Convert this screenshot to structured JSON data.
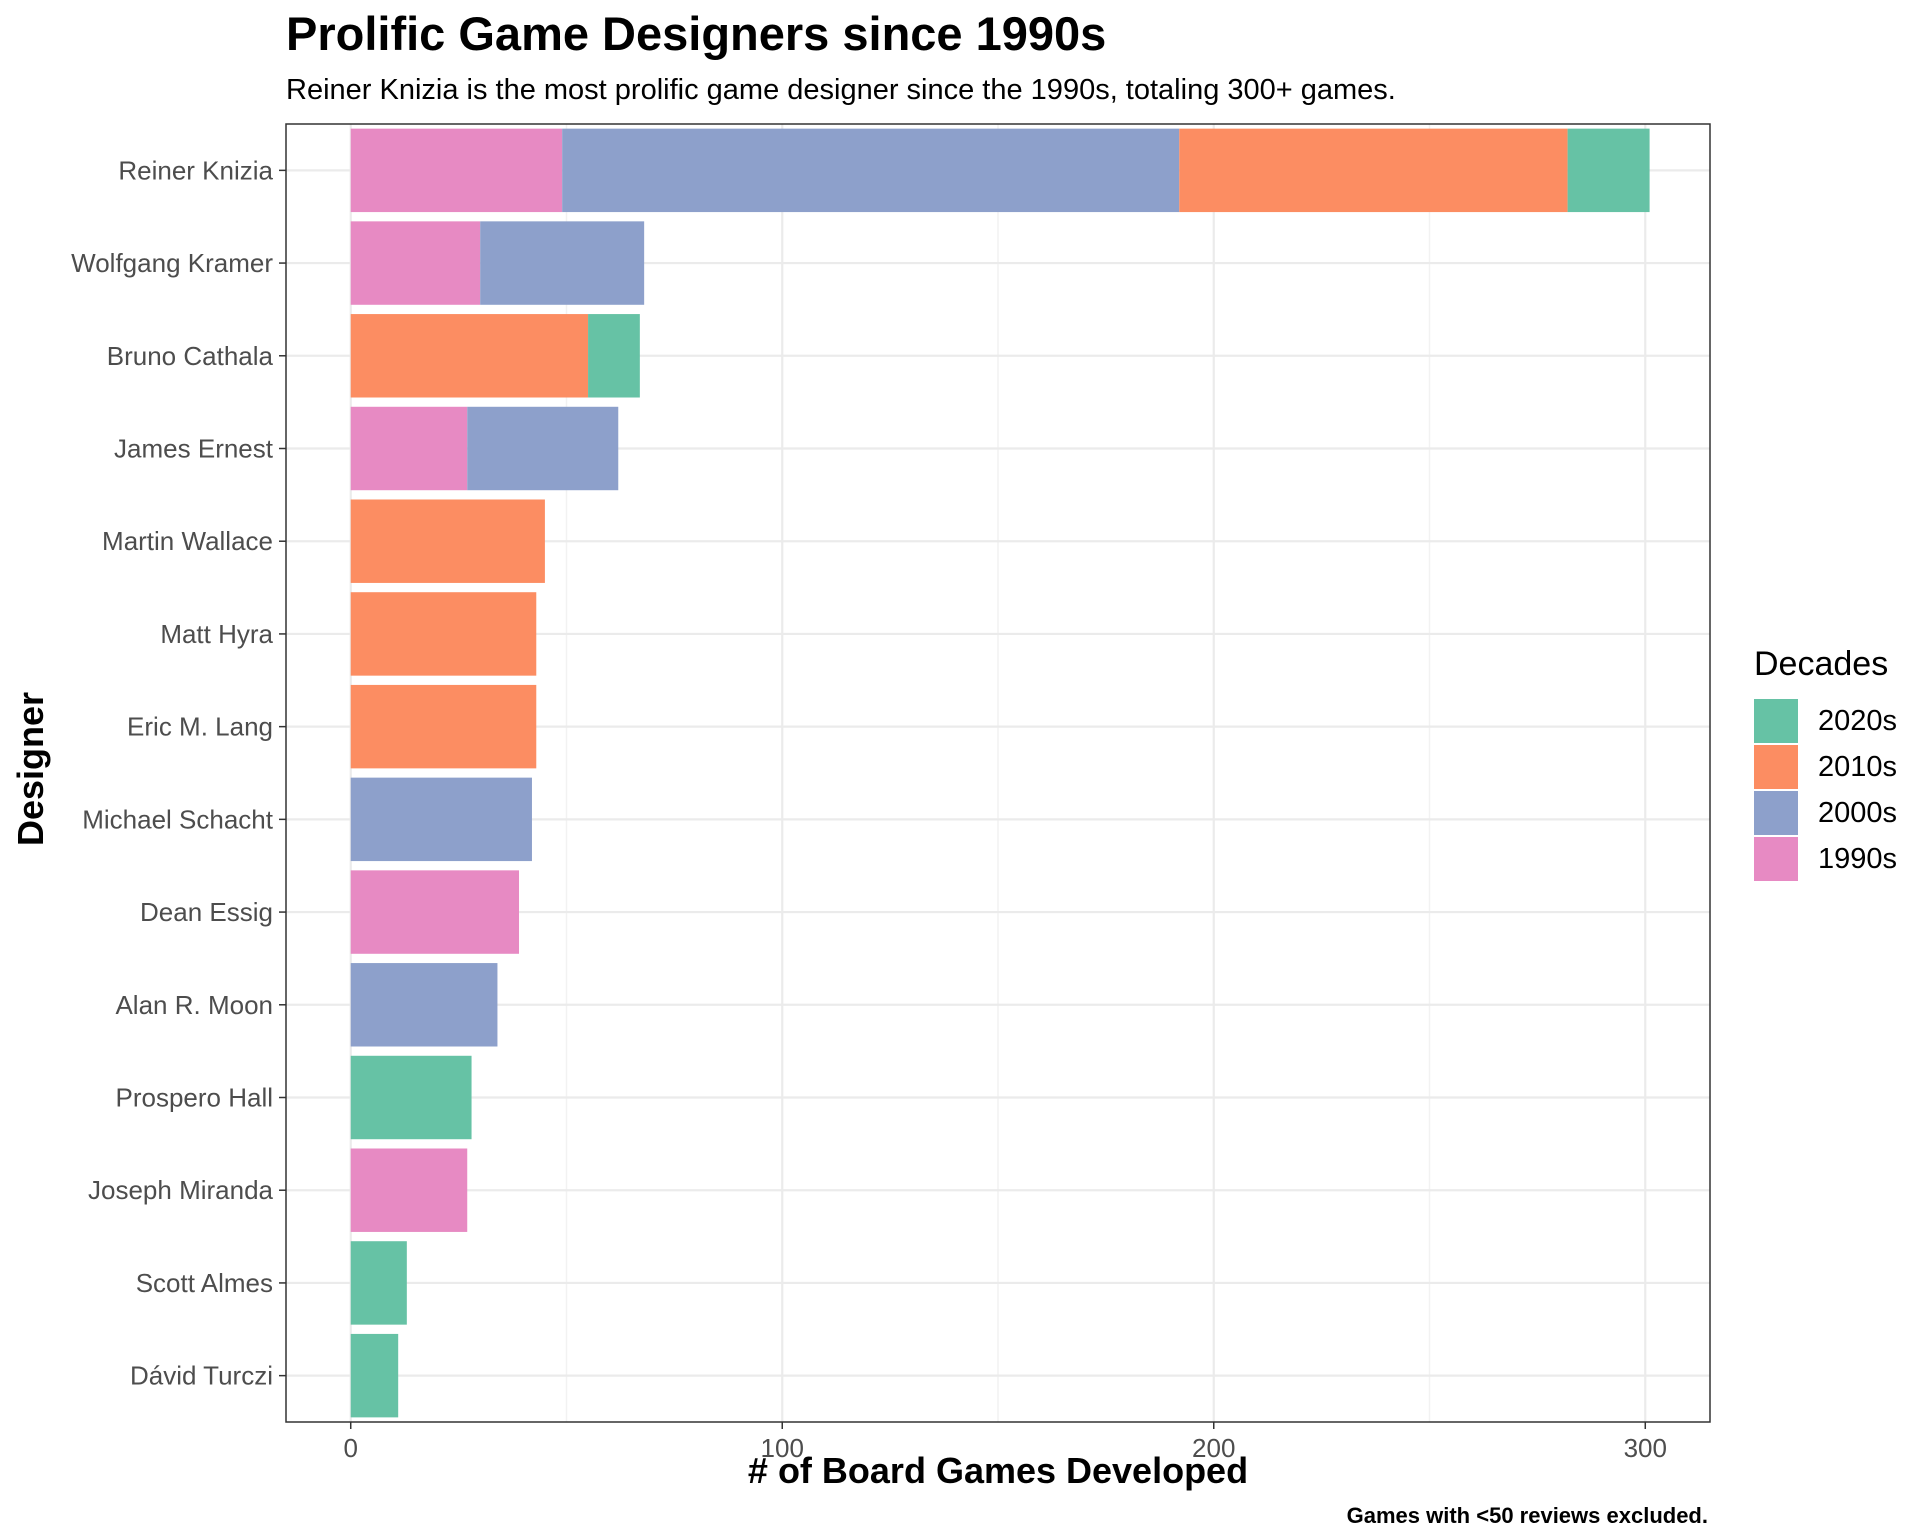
{
  "chart_data": {
    "type": "bar",
    "orientation": "horizontal",
    "stacked": true,
    "title": "Prolific Game Designers since 1990s",
    "subtitle": "Reiner Knizia is the most prolific game designer since the 1990s, totaling 300+ games.",
    "caption": "Games with <50 reviews excluded.",
    "xlabel": "# of Board Games Developed",
    "ylabel": "Designer",
    "xlim": [
      -15,
      315
    ],
    "xticks": [
      0,
      100,
      200,
      300
    ],
    "grid": true,
    "legend_title": "Decades",
    "legend_position": "right",
    "legend_order": [
      "2020s",
      "2010s",
      "2000s",
      "1990s"
    ],
    "categories": [
      "Reiner Knizia",
      "Wolfgang Kramer",
      "Bruno Cathala",
      "James Ernest",
      "Martin Wallace",
      "Matt Hyra",
      "Eric M. Lang",
      "Michael Schacht",
      "Dean Essig",
      "Alan R. Moon",
      "Prospero Hall",
      "Joseph Miranda",
      "Scott Almes",
      "Dávid Turczi"
    ],
    "series": [
      {
        "name": "1990s",
        "color": "#E78AC3",
        "values": [
          49,
          30,
          0,
          27,
          0,
          0,
          0,
          0,
          39,
          0,
          0,
          27,
          0,
          0
        ]
      },
      {
        "name": "2000s",
        "color": "#8DA0CB",
        "values": [
          143,
          38,
          0,
          35,
          0,
          0,
          0,
          42,
          0,
          34,
          0,
          0,
          0,
          0
        ]
      },
      {
        "name": "2010s",
        "color": "#FC8D62",
        "values": [
          90,
          0,
          55,
          0,
          45,
          43,
          43,
          0,
          0,
          0,
          0,
          0,
          0,
          0
        ]
      },
      {
        "name": "2020s",
        "color": "#66C2A5",
        "values": [
          19,
          0,
          12,
          0,
          0,
          0,
          0,
          0,
          0,
          0,
          28,
          0,
          13,
          11
        ]
      }
    ]
  }
}
